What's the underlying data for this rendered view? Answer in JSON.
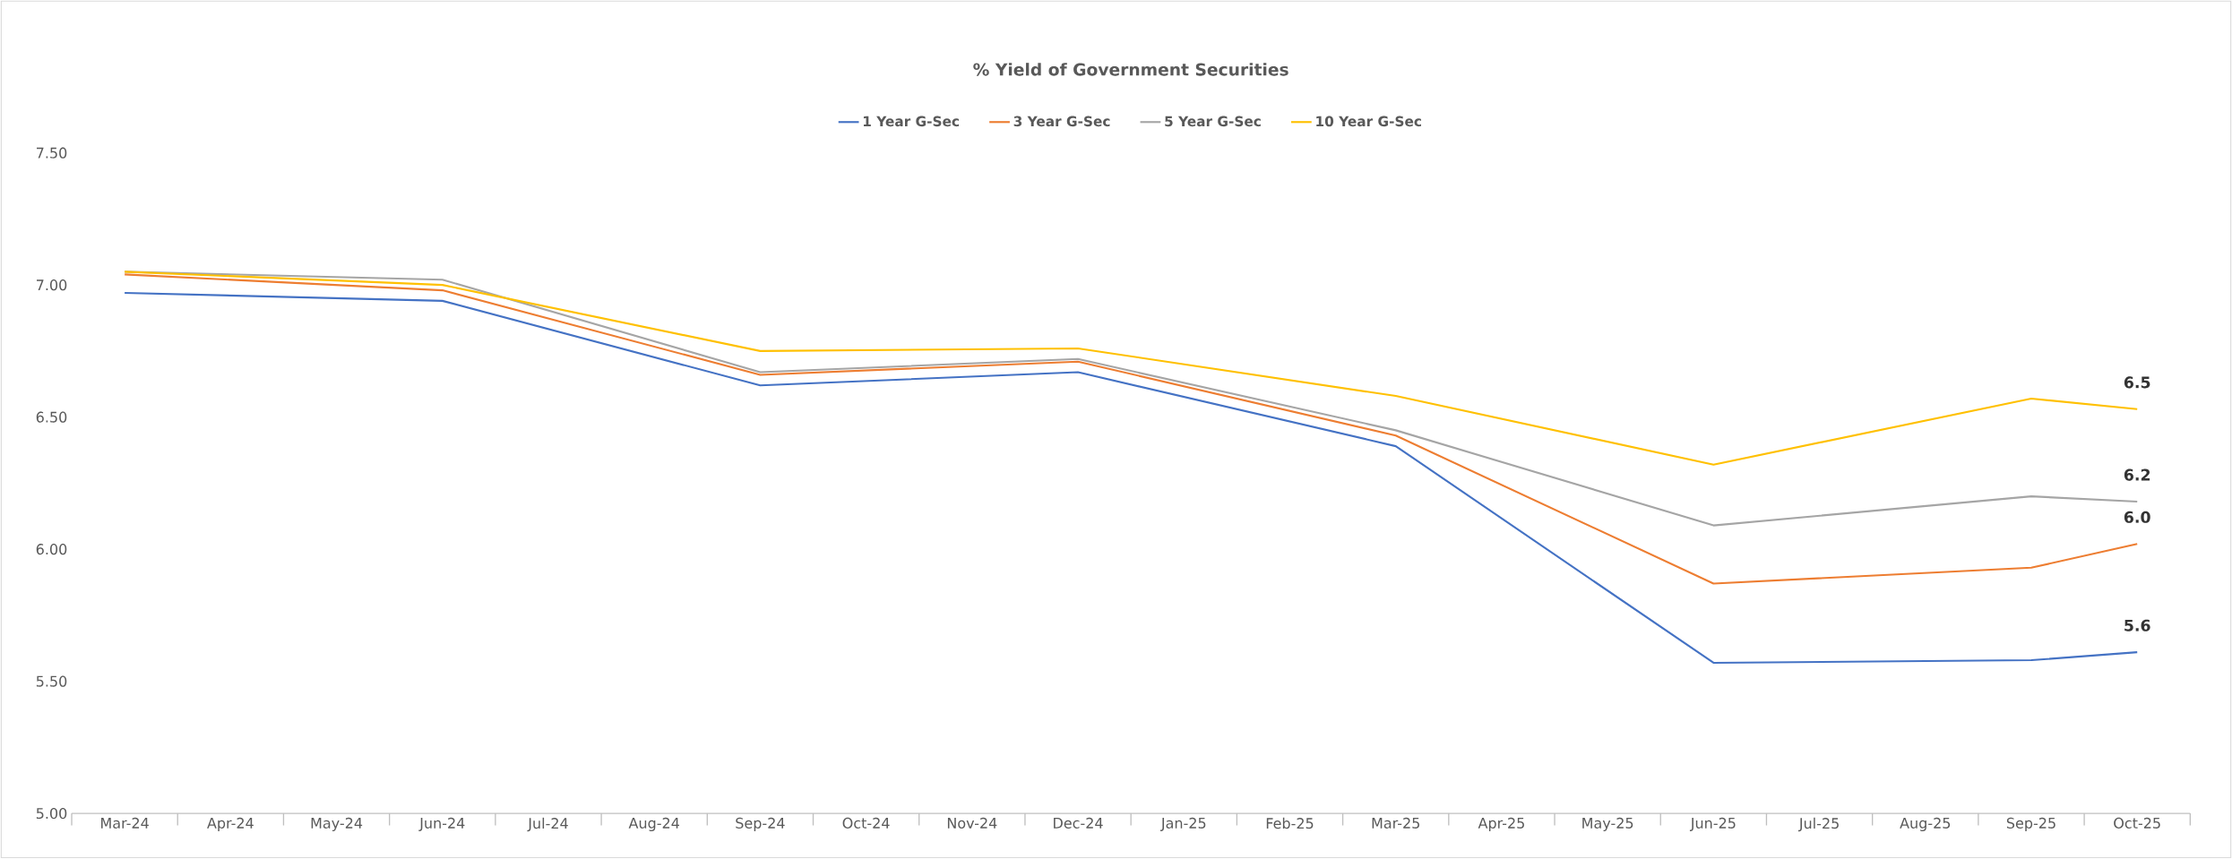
{
  "chart_data": {
    "type": "line",
    "title": "% Yield of Government Securities",
    "categories": [
      "Mar-24",
      "Apr-24",
      "May-24",
      "Jun-24",
      "Jul-24",
      "Aug-24",
      "Sep-24",
      "Oct-24",
      "Nov-24",
      "Dec-24",
      "Jan-25",
      "Feb-25",
      "Mar-25",
      "Apr-25",
      "May-25",
      "Jun-25",
      "Jul-25",
      "Aug-25",
      "Sep-25",
      "Oct-25"
    ],
    "series": [
      {
        "name": "1 Year G-Sec",
        "color": "#4472c4",
        "values": [
          6.97,
          null,
          null,
          6.94,
          null,
          null,
          6.62,
          null,
          null,
          6.67,
          null,
          null,
          6.39,
          null,
          null,
          5.57,
          null,
          null,
          5.58,
          5.61
        ],
        "value_labels": [
          null,
          null,
          null,
          null,
          null,
          null,
          null,
          null,
          null,
          null,
          null,
          null,
          null,
          null,
          null,
          null,
          null,
          null,
          null,
          "5.6"
        ]
      },
      {
        "name": "3 Year G-Sec",
        "color": "#ed7d31",
        "values": [
          7.04,
          null,
          null,
          6.98,
          null,
          null,
          6.66,
          null,
          null,
          6.71,
          null,
          null,
          6.43,
          null,
          null,
          5.87,
          null,
          null,
          5.93,
          6.02
        ],
        "value_labels": [
          null,
          null,
          null,
          null,
          null,
          null,
          null,
          null,
          null,
          null,
          null,
          null,
          null,
          null,
          null,
          null,
          null,
          null,
          null,
          "6.0"
        ]
      },
      {
        "name": "5 Year G-Sec",
        "color": "#a5a5a5",
        "values": [
          7.05,
          null,
          null,
          7.02,
          null,
          null,
          6.67,
          null,
          null,
          6.72,
          null,
          null,
          6.45,
          null,
          null,
          6.09,
          null,
          null,
          6.2,
          6.18
        ],
        "value_labels": [
          null,
          null,
          null,
          null,
          null,
          null,
          null,
          null,
          null,
          null,
          null,
          null,
          null,
          null,
          null,
          null,
          null,
          null,
          null,
          "6.2"
        ]
      },
      {
        "name": "10 Year G-Sec",
        "color": "#ffc000",
        "values": [
          7.05,
          null,
          null,
          7.0,
          null,
          null,
          6.75,
          null,
          null,
          6.76,
          null,
          null,
          6.58,
          null,
          null,
          6.32,
          null,
          null,
          6.57,
          6.53
        ],
        "value_labels": [
          null,
          null,
          null,
          null,
          null,
          null,
          null,
          null,
          null,
          null,
          null,
          null,
          null,
          null,
          null,
          null,
          null,
          null,
          null,
          "6.5"
        ]
      }
    ],
    "ylim": [
      5.0,
      7.5
    ],
    "yticks": [
      {
        "value": 5.0,
        "label": "5.00"
      },
      {
        "value": 5.5,
        "label": "5.50"
      },
      {
        "value": 6.0,
        "label": "6.00"
      },
      {
        "value": 6.5,
        "label": "6.50"
      },
      {
        "value": 7.0,
        "label": "7.00"
      },
      {
        "value": 7.5,
        "label": "7.50"
      }
    ],
    "grid": false,
    "legend": "top",
    "marker": "none",
    "line_style": "solid"
  }
}
